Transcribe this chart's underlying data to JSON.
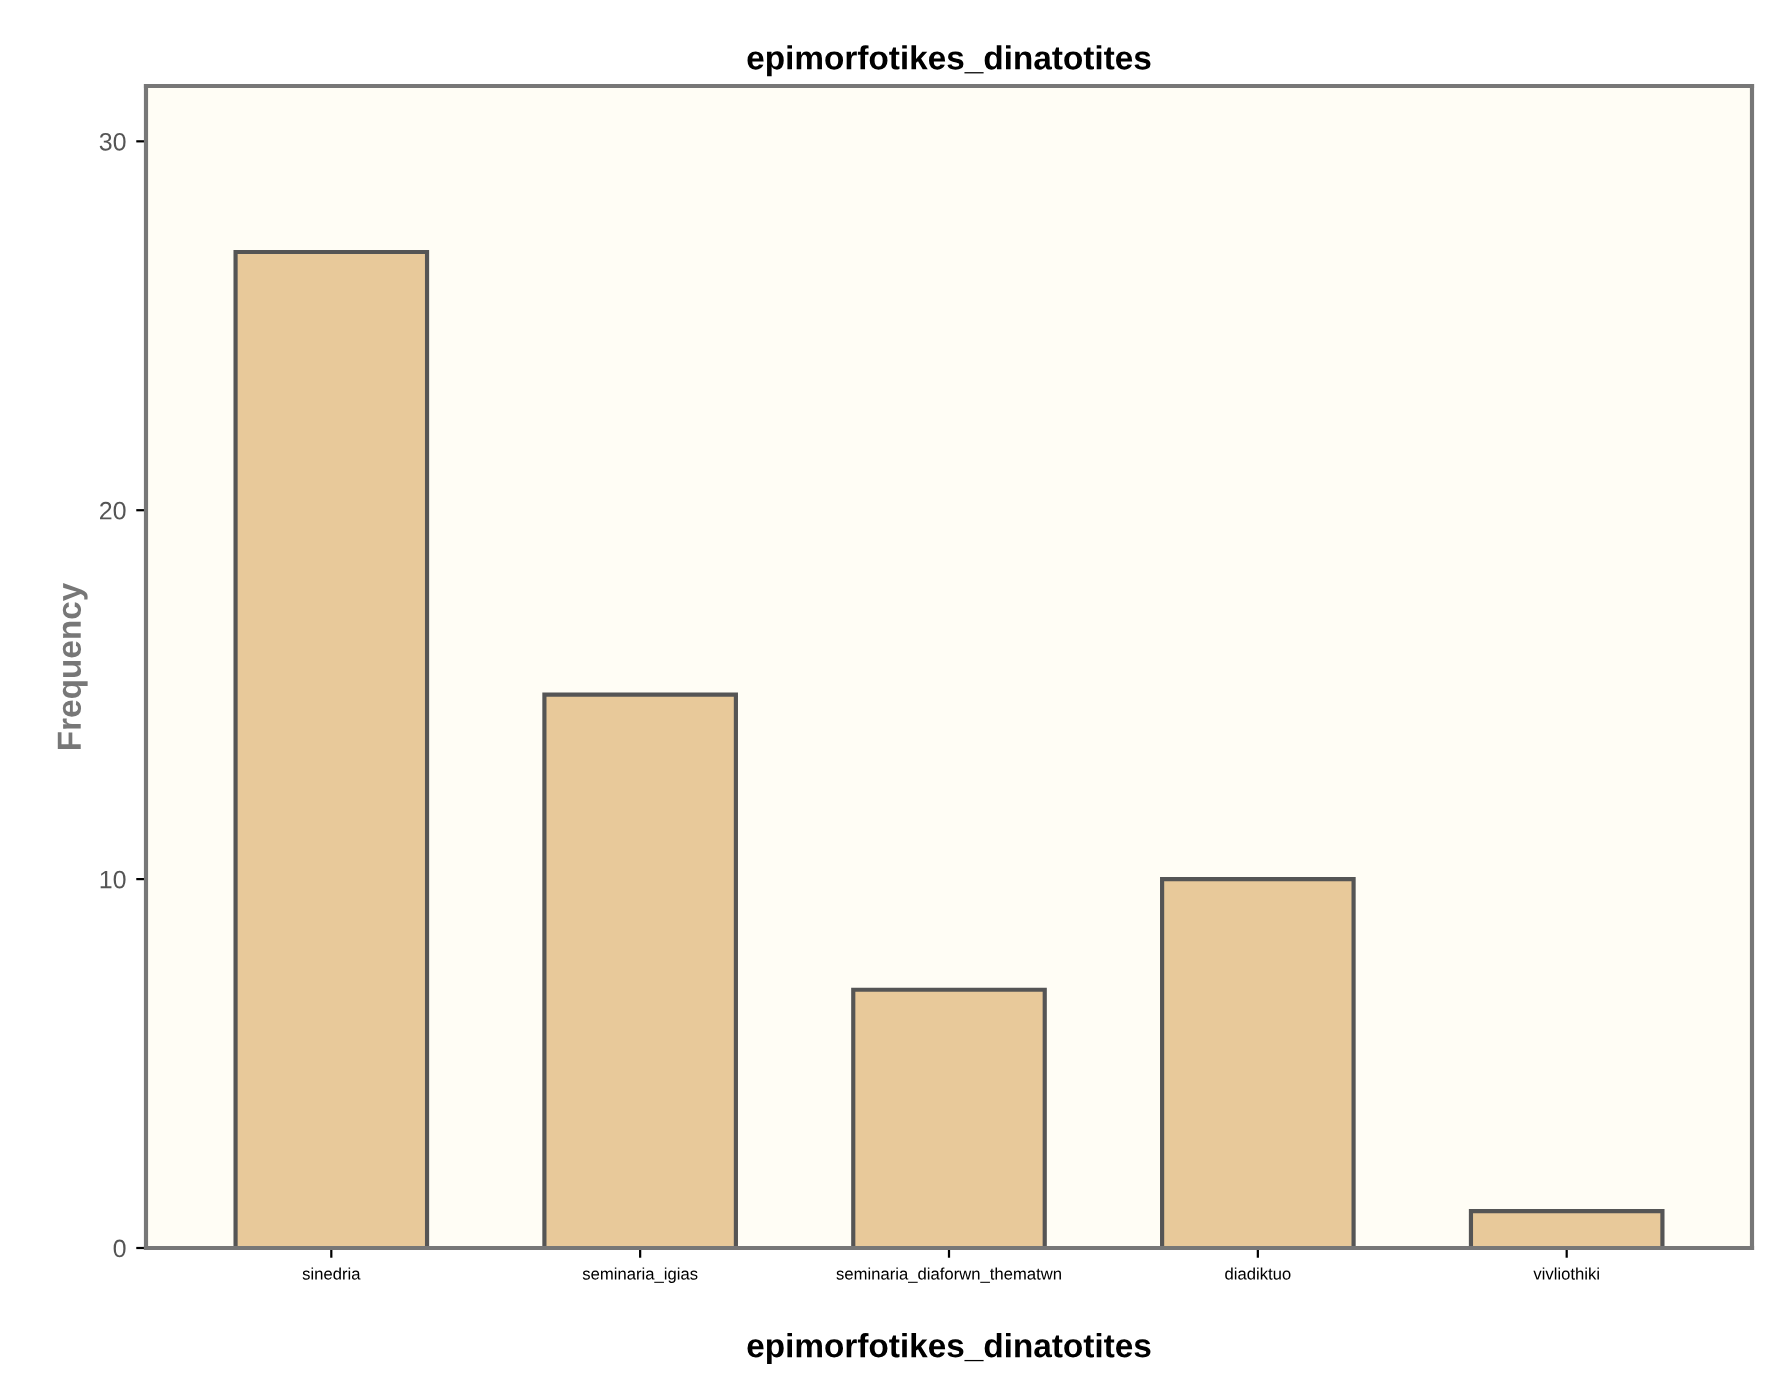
{
  "chart_data": {
    "type": "bar",
    "title": "epimorfotikes_dinatotites",
    "xlabel": "epimorfotikes_dinatotites",
    "ylabel": "Frequency",
    "categories": [
      "sinedria",
      "seminaria_igias",
      "seminaria_diaforwn_thematwn",
      "diadiktuo",
      "vivliothiki"
    ],
    "values": [
      27,
      15,
      7,
      10,
      1
    ],
    "color": "#e8c99a",
    "ylim": [
      0,
      31.5
    ],
    "yticks": [
      0,
      10,
      20,
      30
    ],
    "grid": false,
    "legend": false
  }
}
